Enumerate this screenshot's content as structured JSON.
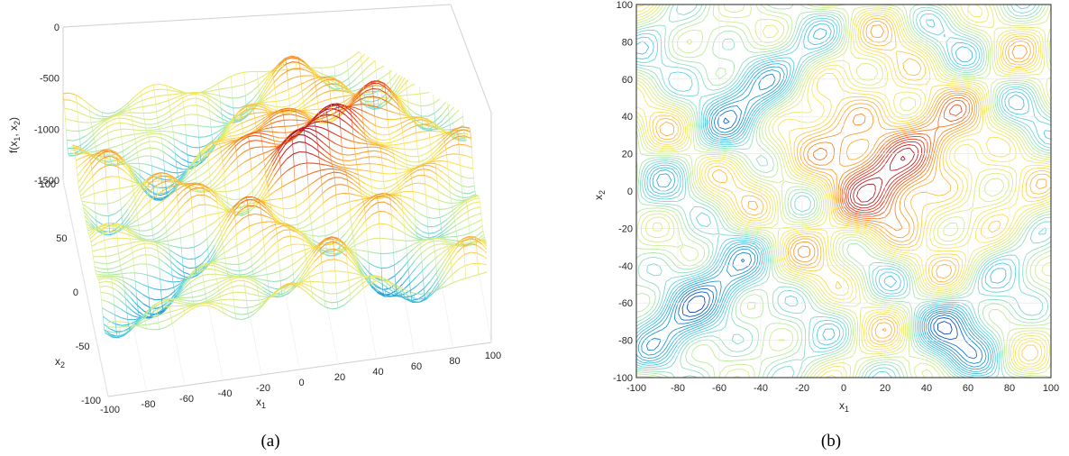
{
  "chart_data": [
    {
      "type": "surface",
      "panel_label": "(a)",
      "xlabel": "x",
      "xlabel_sub": "1",
      "ylabel": "x",
      "ylabel_sub": "2",
      "zlabel_parts": [
        "f(x",
        "1",
        ", x",
        "2",
        ")"
      ],
      "xlim": [
        -100,
        100
      ],
      "ylim": [
        -100,
        100
      ],
      "zlim": [
        -1500,
        0
      ],
      "xticks": [
        -100,
        -80,
        -60,
        -40,
        -20,
        0,
        20,
        40,
        60,
        80,
        100
      ],
      "yticks": [
        -100,
        -50,
        0,
        50,
        100
      ],
      "zticks": [
        0,
        -500,
        -1000,
        -1500
      ],
      "colormap": [
        "#0a2db4",
        "#1e9bd2",
        "#5fd2e6",
        "#c8ee96",
        "#fae65a",
        "#fa9b2d",
        "#e1371e",
        "#a5142d"
      ]
    },
    {
      "type": "contour",
      "panel_label": "(b)",
      "xlabel": "x",
      "xlabel_sub": "1",
      "ylabel": "x",
      "ylabel_sub": "2",
      "xlim": [
        -100,
        100
      ],
      "ylim": [
        -100,
        100
      ],
      "xticks": [
        -100,
        -80,
        -60,
        -40,
        -20,
        0,
        20,
        40,
        60,
        80,
        100
      ],
      "yticks": [
        100,
        80,
        60,
        40,
        20,
        0,
        -20,
        -40,
        -60,
        -80,
        -100
      ],
      "colormap": [
        "#0a2db4",
        "#1e9bd2",
        "#5fd2e6",
        "#c8ee96",
        "#fae65a",
        "#fa9b2d",
        "#e1371e",
        "#a5142d"
      ]
    }
  ]
}
